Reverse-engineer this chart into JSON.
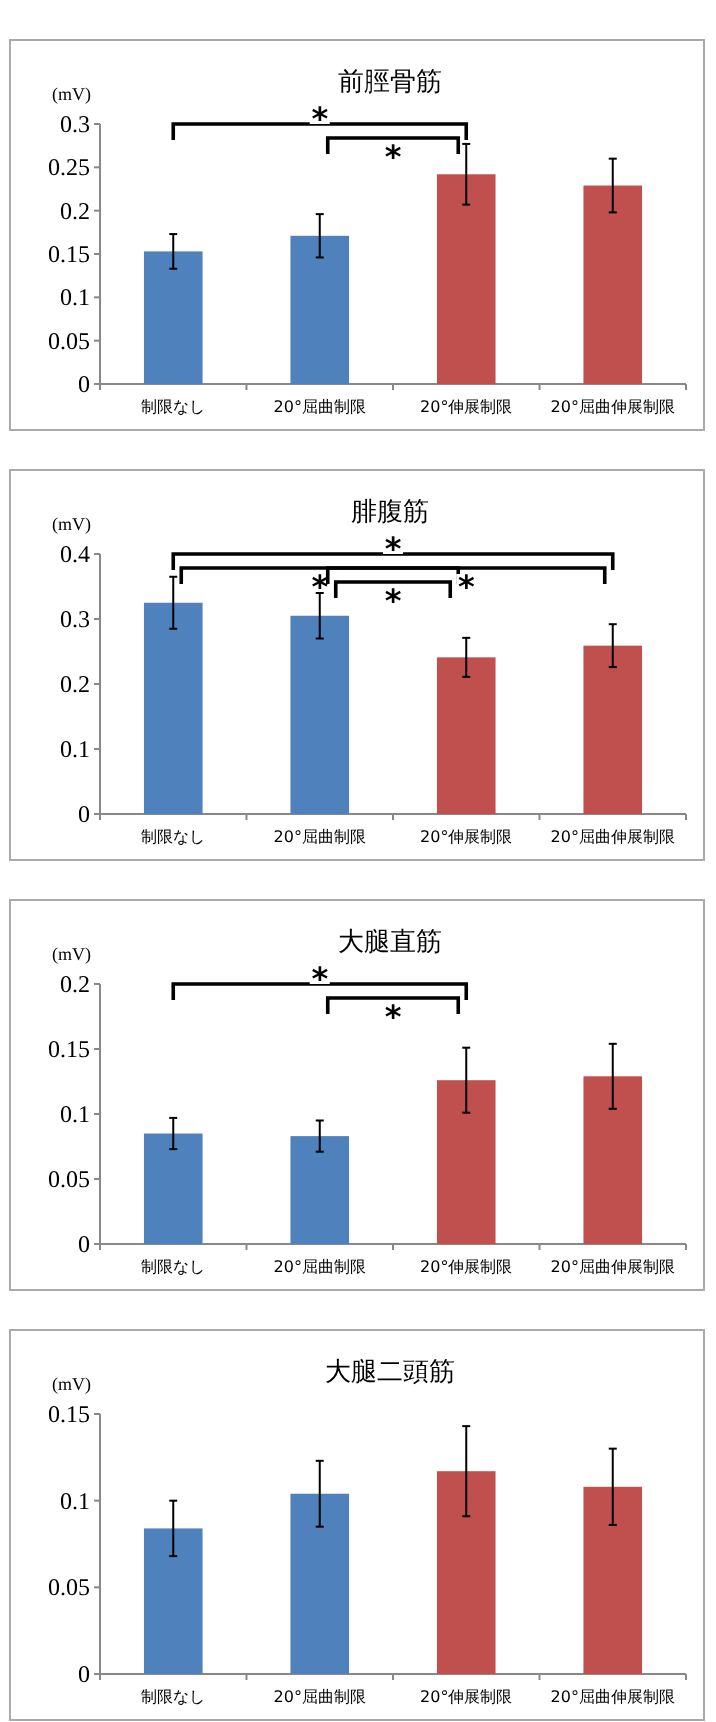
{
  "chart_data": [
    {
      "type": "bar",
      "title": "前脛骨筋",
      "ylabel": "(mV)",
      "categories": [
        "制限なし",
        "20°屈曲制限",
        "20°伸展制限",
        "20°屈曲伸展制限"
      ],
      "values": [
        0.153,
        0.171,
        0.242,
        0.229
      ],
      "errors": [
        0.02,
        0.025,
        0.035,
        0.031
      ],
      "colors": [
        "#4f81bd",
        "#4f81bd",
        "#c0504d",
        "#c0504d"
      ],
      "ylim": [
        0,
        0.3
      ],
      "yticks": [
        0,
        0.05,
        0.1,
        0.15,
        0.2,
        0.25,
        0.3
      ],
      "annotations": [
        {
          "text": "*",
          "x": "20°屈曲制限"
        },
        "*"
      ]
    },
    {
      "type": "bar",
      "title": "腓腹筋",
      "ylabel": "(mV)",
      "categories": [
        "制限なし",
        "20°屈曲制限",
        "20°伸展制限",
        "20°屈曲伸展制限"
      ],
      "values": [
        0.325,
        0.305,
        0.241,
        0.259
      ],
      "errors": [
        0.04,
        0.035,
        0.03,
        0.033
      ],
      "colors": [
        "#4f81bd",
        "#4f81bd",
        "#c0504d",
        "#c0504d"
      ],
      "ylim": [
        0,
        0.4
      ],
      "yticks": [
        0,
        0.1,
        0.2,
        0.3,
        0.4
      ],
      "annotations": [
        "*",
        {
          "text": "*",
          "x": "20°屈曲制限"
        },
        "*",
        {
          "text": "*",
          "x": "20°伸展制限"
        }
      ]
    },
    {
      "type": "bar",
      "title": "大腿直筋",
      "ylabel": "(mV)",
      "categories": [
        "制限なし",
        "20°屈曲制限",
        "20°伸展制限",
        "20°屈曲伸展制限"
      ],
      "values": [
        0.085,
        0.083,
        0.126,
        0.129
      ],
      "errors": [
        0.012,
        0.012,
        0.025,
        0.025
      ],
      "colors": [
        "#4f81bd",
        "#4f81bd",
        "#c0504d",
        "#c0504d"
      ],
      "ylim": [
        0,
        0.2
      ],
      "yticks": [
        0,
        0.05,
        0.1,
        0.15,
        0.2
      ],
      "annotations": [
        {
          "text": "*",
          "x": "20°屈曲制限"
        },
        "*"
      ]
    },
    {
      "type": "bar",
      "title": "大腿二頭筋",
      "ylabel": "(mV)",
      "categories": [
        "制限なし",
        "20°屈曲制限",
        "20°伸展制限",
        "20°屈曲伸展制限"
      ],
      "values": [
        0.084,
        0.104,
        0.117,
        0.108
      ],
      "errors": [
        0.016,
        0.019,
        0.026,
        0.022
      ],
      "colors": [
        "#4f81bd",
        "#4f81bd",
        "#c0504d",
        "#c0504d"
      ],
      "ylim": [
        0,
        0.15
      ],
      "yticks": [
        0,
        0.05,
        0.1,
        0.15
      ]
    }
  ]
}
